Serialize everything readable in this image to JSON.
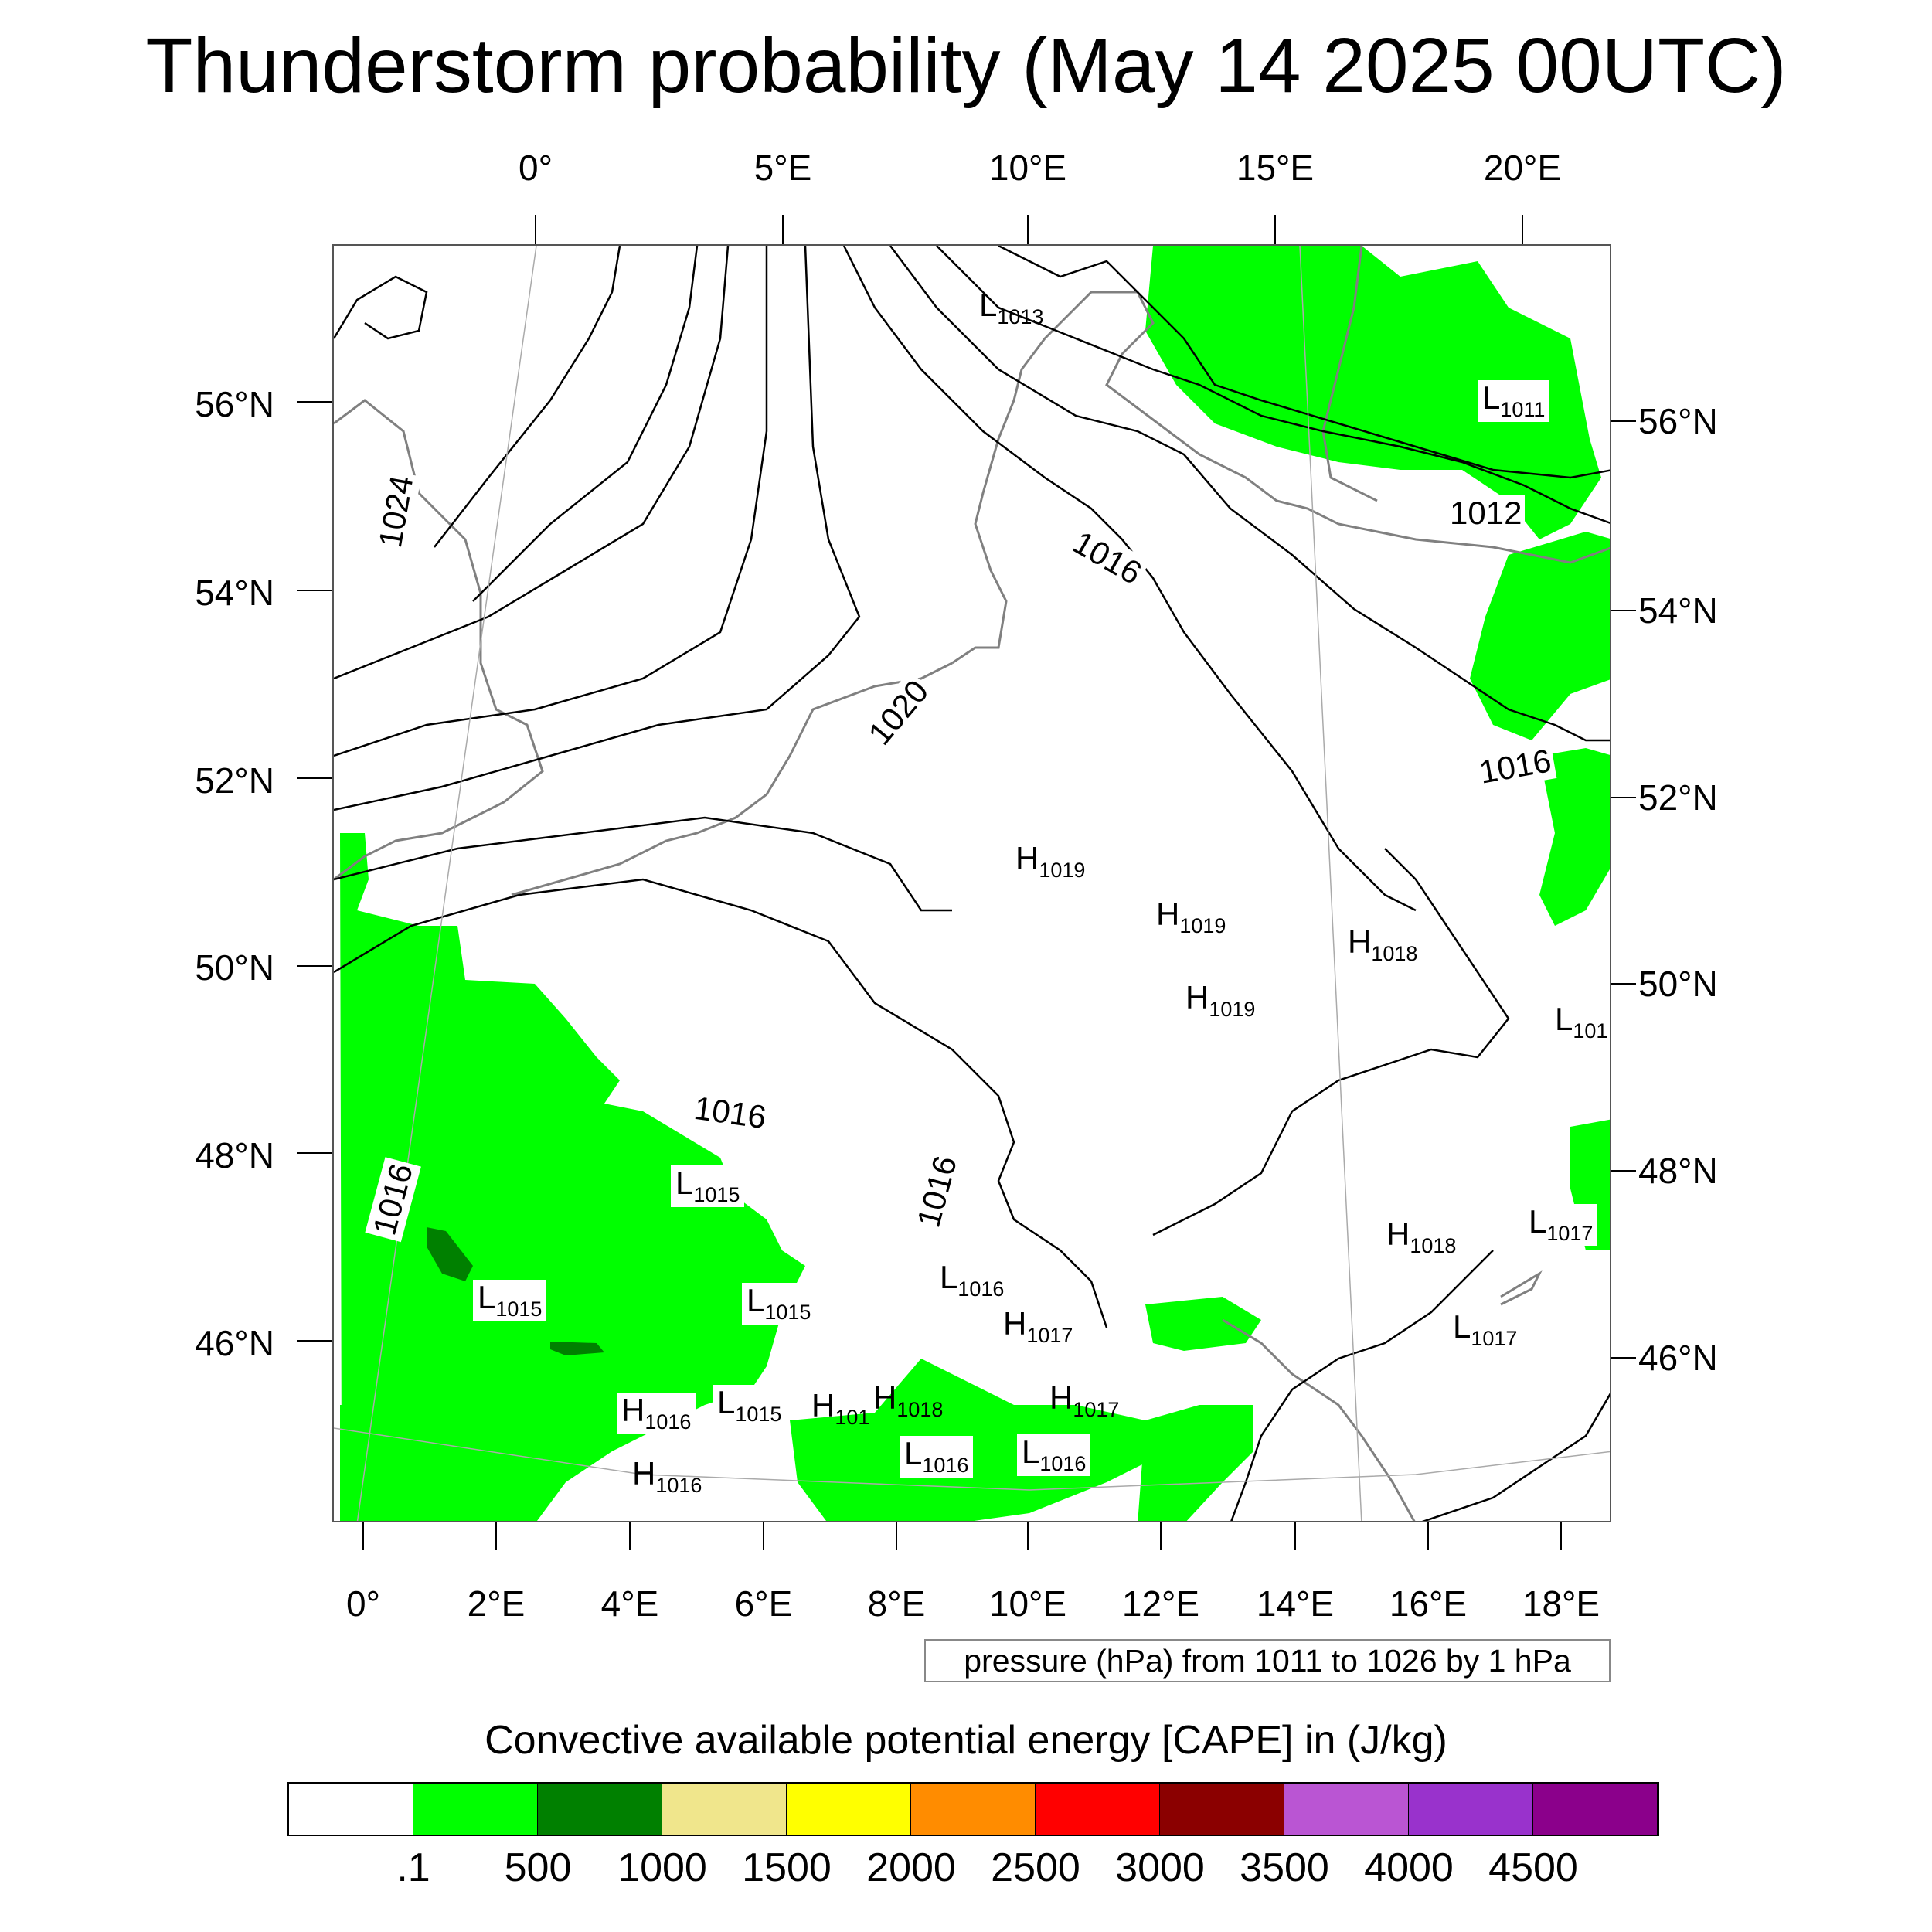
{
  "title": "Thunderstorm probability (May 14 2025 00UTC)",
  "axes": {
    "top_ticks": [
      "0°",
      "5°E",
      "10°E",
      "15°E",
      "20°E"
    ],
    "bottom_ticks": [
      "0°",
      "2°E",
      "4°E",
      "6°E",
      "8°E",
      "10°E",
      "12°E",
      "14°E",
      "16°E",
      "18°E"
    ],
    "left_ticks": [
      "56°N",
      "54°N",
      "52°N",
      "50°N",
      "48°N",
      "46°N"
    ],
    "right_ticks": [
      "56°N",
      "54°N",
      "52°N",
      "50°N",
      "48°N",
      "46°N"
    ]
  },
  "pressure_note": "pressure (hPa) from 1011 to 1026 by 1 hPa",
  "colorbar": {
    "title": "Convective available potential energy [CAPE] in (J/kg)",
    "colors": [
      "#ffffff",
      "#00ff00",
      "#008000",
      "#f0e68c",
      "#ffff00",
      "#ff8c00",
      "#ff0000",
      "#8b0000",
      "#ba55d3",
      "#9932cc",
      "#8b008b"
    ],
    "labels": [
      ".1",
      "500",
      "1000",
      "1500",
      "2000",
      "2500",
      "3000",
      "3500",
      "4000",
      "4500"
    ]
  },
  "isobar_labels": [
    "1024",
    "1020",
    "1016",
    "1012",
    "1016",
    "1016",
    "1016",
    "1016"
  ],
  "pressure_centers": [
    {
      "type": "L",
      "value": "1013"
    },
    {
      "type": "L",
      "value": "1011"
    },
    {
      "type": "H",
      "value": "1019"
    },
    {
      "type": "H",
      "value": "1019"
    },
    {
      "type": "H",
      "value": "1018"
    },
    {
      "type": "H",
      "value": "1019"
    },
    {
      "type": "L",
      "value": "101"
    },
    {
      "type": "L",
      "value": "1015"
    },
    {
      "type": "H",
      "value": "1018"
    },
    {
      "type": "L",
      "value": "1017"
    },
    {
      "type": "L",
      "value": "1016"
    },
    {
      "type": "L",
      "value": "1015"
    },
    {
      "type": "L",
      "value": "1015"
    },
    {
      "type": "H",
      "value": "1017"
    },
    {
      "type": "L",
      "value": "1017"
    },
    {
      "type": "H",
      "value": "1016"
    },
    {
      "type": "L",
      "value": "1015"
    },
    {
      "type": "H",
      "value": "101"
    },
    {
      "type": "H",
      "value": "1018"
    },
    {
      "type": "H",
      "value": "1017"
    },
    {
      "type": "L",
      "value": "1016"
    },
    {
      "type": "L",
      "value": "1016"
    },
    {
      "type": "H",
      "value": "1016"
    }
  ]
}
